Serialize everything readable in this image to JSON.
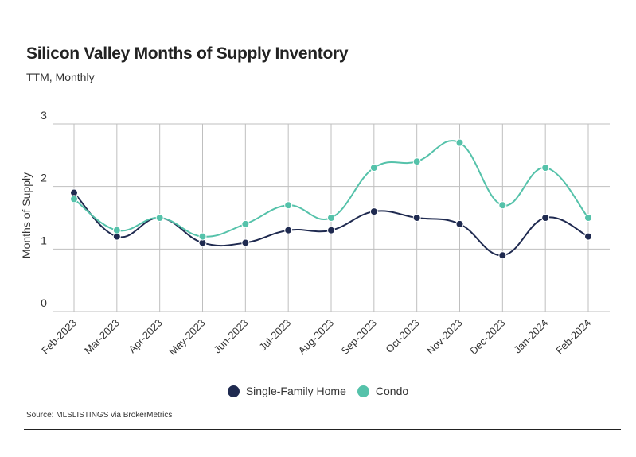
{
  "chart_data": {
    "type": "line",
    "title": "Silicon Valley Months of Supply Inventory",
    "subtitle": "TTM, Monthly",
    "xlabel": "",
    "ylabel": "Months of Supply",
    "ylim": [
      0,
      3
    ],
    "yticks": [
      0,
      1,
      2,
      3
    ],
    "grid": true,
    "legend_position": "bottom-center",
    "categories": [
      "Feb-2023",
      "Mar-2023",
      "Apr-2023",
      "May-2023",
      "Jun-2023",
      "Jul-2023",
      "Aug-2023",
      "Sep-2023",
      "Oct-2023",
      "Nov-2023",
      "Dec-2023",
      "Jan-2024",
      "Feb-2024"
    ],
    "series": [
      {
        "name": "Single-Family Home",
        "color": "#1f2a50",
        "values": [
          1.9,
          1.2,
          1.5,
          1.1,
          1.1,
          1.3,
          1.3,
          1.6,
          1.5,
          1.4,
          0.9,
          1.5,
          1.2
        ]
      },
      {
        "name": "Condo",
        "color": "#55c2aa",
        "values": [
          1.8,
          1.3,
          1.5,
          1.2,
          1.4,
          1.7,
          1.5,
          2.3,
          2.4,
          2.7,
          1.7,
          2.3,
          1.5
        ]
      }
    ],
    "source": "Source:  MLSLISTINGS via BrokerMetrics"
  }
}
